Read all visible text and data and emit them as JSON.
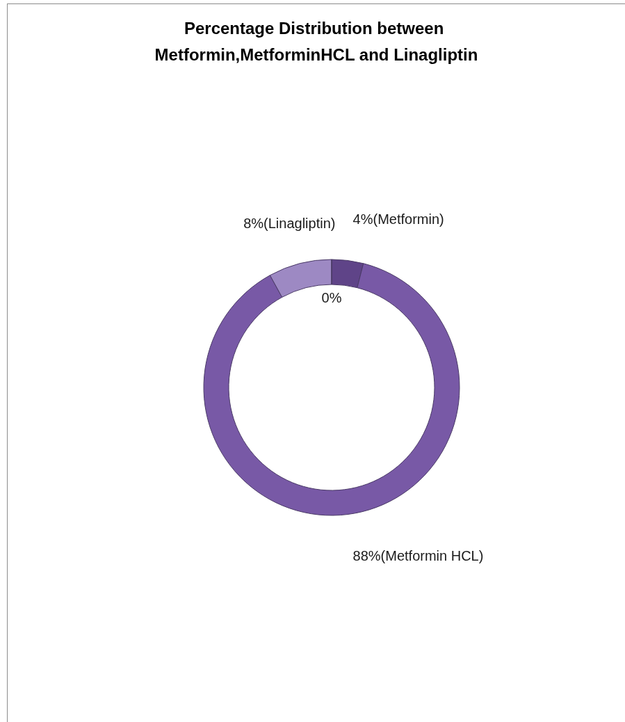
{
  "chart_data": {
    "type": "donut",
    "title": "Percentage Distribution between Metformin,MetforminHCL and Linagliptin",
    "categories": [
      "(Metformin)",
      "(Metformin HCL)",
      "(Linagliptin)",
      null
    ],
    "values": [
      4,
      88,
      8,
      0
    ],
    "colors": [
      "#5f4488",
      "#7859a6",
      "#9d89c3",
      "#7859a6"
    ],
    "value_labels": [
      "4%",
      "88%",
      "8%",
      "0%"
    ]
  }
}
